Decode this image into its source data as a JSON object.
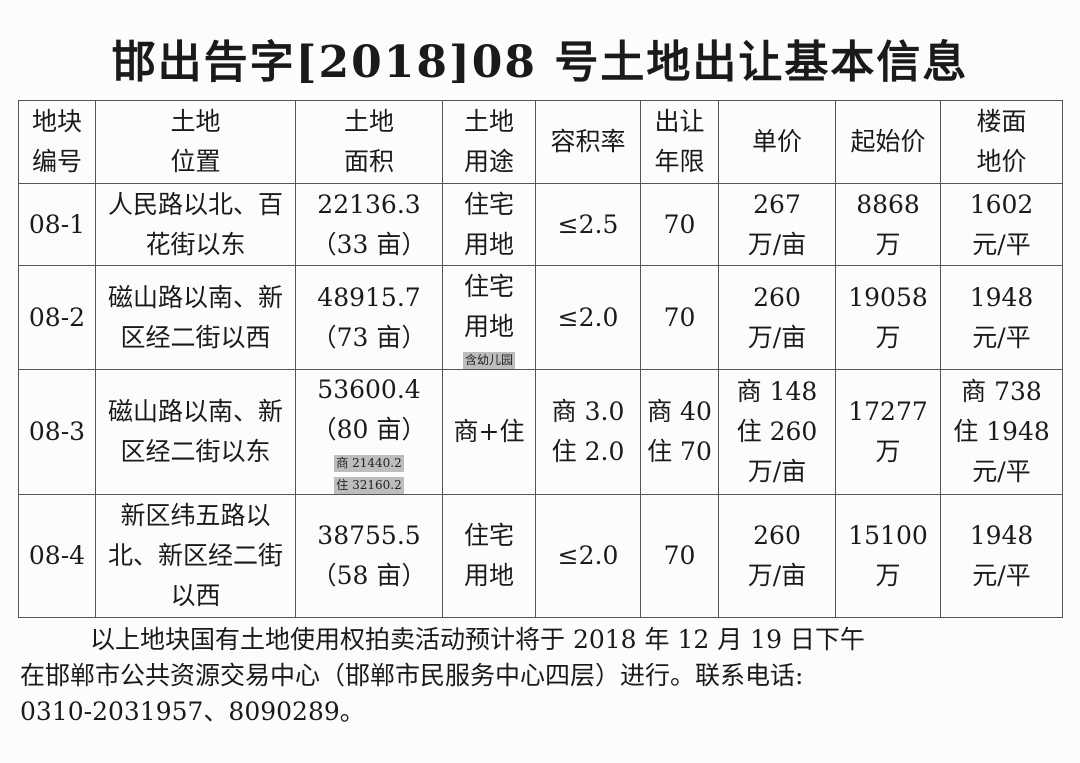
{
  "title": "邯出告字[2018]08 号土地出让基本信息",
  "table": {
    "headers": [
      [
        "地块",
        "编号"
      ],
      [
        "土地",
        "位置"
      ],
      [
        "土地",
        "面积"
      ],
      [
        "土地",
        "用途"
      ],
      [
        "容积率"
      ],
      [
        "出让",
        "年限"
      ],
      [
        "单价"
      ],
      [
        "起始价"
      ],
      [
        "楼面",
        "地价"
      ]
    ],
    "rows": [
      {
        "id": "08-1",
        "location": [
          "人民路以北、百",
          "花街以东"
        ],
        "area": [
          "22136.3",
          "（33 亩）"
        ],
        "area_note": [],
        "use": [
          "住宅",
          "用地"
        ],
        "use_note": "",
        "far": [
          "≤2.5"
        ],
        "term": [
          "70"
        ],
        "unit_price": [
          "267",
          "万/亩"
        ],
        "start_price": [
          "8868",
          "万"
        ],
        "floor_price": [
          "1602",
          "元/平"
        ]
      },
      {
        "id": "08-2",
        "location": [
          "磁山路以南、新",
          "区经二街以西"
        ],
        "area": [
          "48915.7",
          "（73 亩）"
        ],
        "area_note": [],
        "use": [
          "住宅",
          "用地"
        ],
        "use_note": "含幼儿园",
        "far": [
          "≤2.0"
        ],
        "term": [
          "70"
        ],
        "unit_price": [
          "260",
          "万/亩"
        ],
        "start_price": [
          "19058",
          "万"
        ],
        "floor_price": [
          "1948",
          "元/平"
        ]
      },
      {
        "id": "08-3",
        "location": [
          "磁山路以南、新",
          "区经二街以东"
        ],
        "area": [
          "53600.4",
          "（80 亩）"
        ],
        "area_note": [
          "商 21440.2",
          "住 32160.2"
        ],
        "use": [
          "商+住"
        ],
        "use_note": "",
        "far": [
          "商 3.0",
          "住 2.0"
        ],
        "term": [
          "商 40",
          "住 70"
        ],
        "unit_price": [
          "商 148",
          "住 260",
          "万/亩"
        ],
        "start_price": [
          "17277",
          "万"
        ],
        "floor_price": [
          "商 738",
          "住 1948",
          "元/平"
        ]
      },
      {
        "id": "08-4",
        "location": [
          "新区纬五路以",
          "北、新区经二街",
          "以西"
        ],
        "area": [
          "38755.5",
          "（58 亩）"
        ],
        "area_note": [],
        "use": [
          "住宅",
          "用地"
        ],
        "use_note": "",
        "far": [
          "≤2.0"
        ],
        "term": [
          "70"
        ],
        "unit_price": [
          "260",
          "万/亩"
        ],
        "start_price": [
          "15100",
          "万"
        ],
        "floor_price": [
          "1948",
          "元/平"
        ]
      }
    ]
  },
  "footer": [
    "以上地块国有土地使用权拍卖活动预计将于 2018 年 12 月 19 日下午",
    "在邯郸市公共资源交易中心（邯郸市民服务中心四层）进行。联系电话:",
    "0310-2031957、8090289。"
  ]
}
